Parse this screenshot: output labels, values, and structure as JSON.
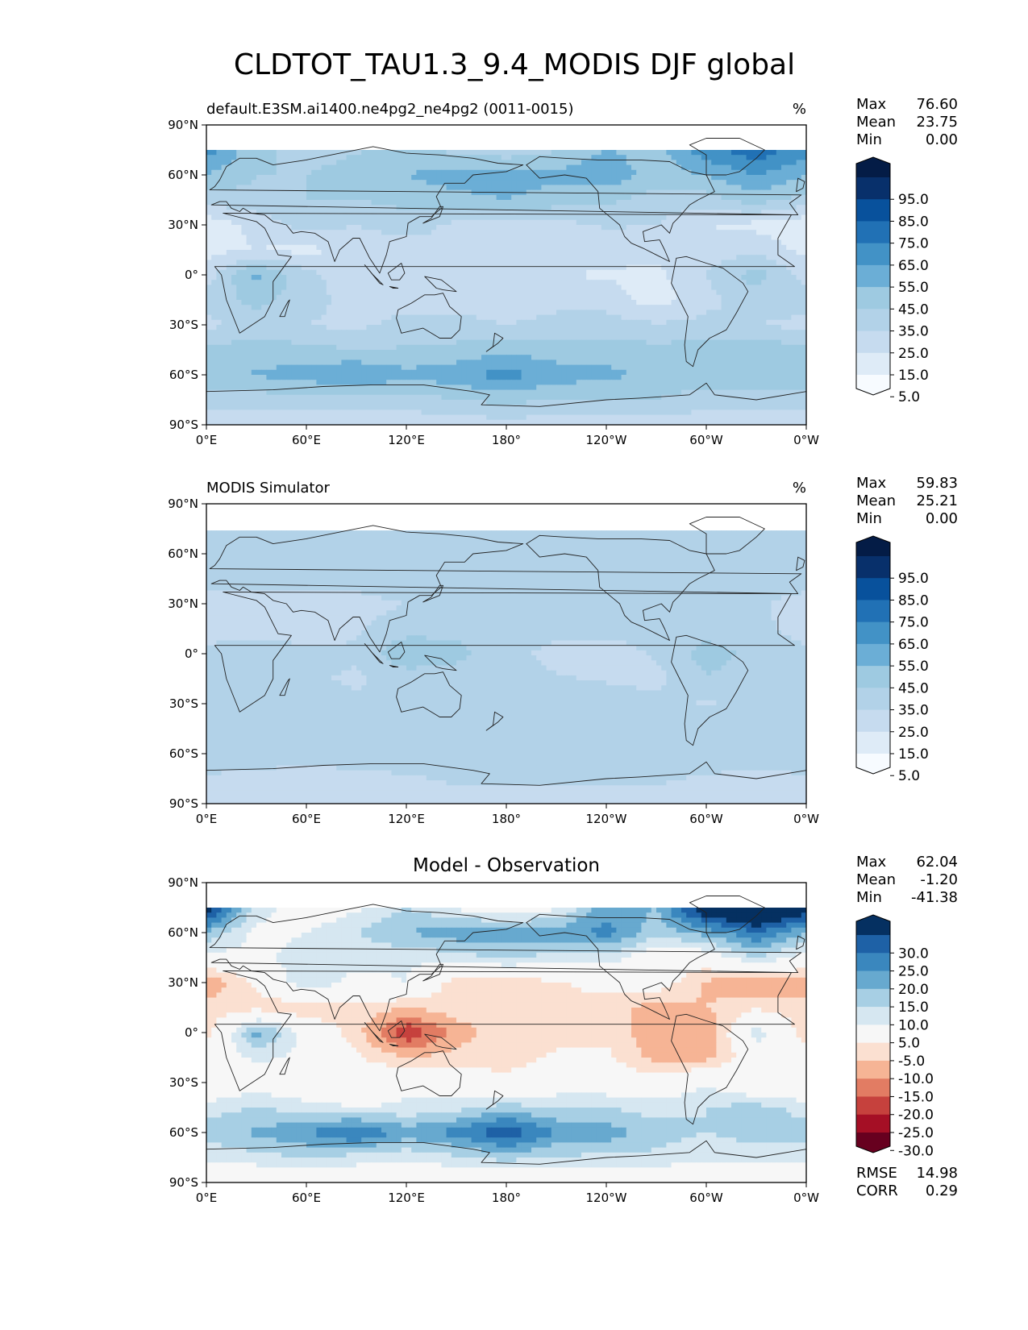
{
  "figure": {
    "title": "CLDTOT_TAU1.3_9.4_MODIS DJF global"
  },
  "palettes": {
    "sequential": [
      "#f7fbff",
      "#deebf7",
      "#c6dbef",
      "#b2d2e8",
      "#9ecae1",
      "#6baed6",
      "#4292c6",
      "#2171b5",
      "#08519c",
      "#08306b",
      "#041c46"
    ],
    "diverging": [
      "#67001f",
      "#a50f25",
      "#c6413d",
      "#e27c63",
      "#f6b495",
      "#fbe0d1",
      "#f7f7f7",
      "#d6e7f1",
      "#a7cfe4",
      "#67a9cf",
      "#3a87be",
      "#1e61a6",
      "#053061"
    ]
  },
  "chart_data": [
    {
      "type": "heatmap",
      "name": "test",
      "title_left": "default.E3SM.ai1400.ne4pg2_ne4pg2 (0011-0015)",
      "title_center": "",
      "units": "%",
      "stats": [
        {
          "label": "Max",
          "value": "76.60"
        },
        {
          "label": "Mean",
          "value": "23.75"
        },
        {
          "label": "Min",
          "value": "0.00"
        }
      ],
      "colorbar": {
        "levels": [
          0,
          5,
          15,
          25,
          35,
          45,
          55,
          65,
          75,
          85,
          95,
          100
        ],
        "tick_labels": [
          "95.0",
          "85.0",
          "75.0",
          "65.0",
          "55.0",
          "45.0",
          "35.0",
          "25.0",
          "15.0",
          "5.0"
        ],
        "extend": "both",
        "palette": "sequential"
      },
      "lon_ticks": [
        "0°E",
        "60°E",
        "120°E",
        "180°",
        "120°W",
        "60°W",
        "0°W"
      ],
      "lat_ticks": [
        "90°N",
        "60°N",
        "30°N",
        "0°",
        "30°S",
        "60°S",
        "90°S"
      ],
      "data_lat_range": [
        -90,
        75
      ],
      "grid": {
        "lats": [
          75,
          60,
          45,
          30,
          15,
          0,
          -15,
          -30,
          -45,
          -60,
          -75,
          -90
        ],
        "lons": [
          0,
          30,
          60,
          90,
          120,
          150,
          180,
          210,
          240,
          270,
          300,
          330,
          360
        ],
        "values": [
          [
            60,
            38,
            30,
            34,
            38,
            32,
            28,
            34,
            46,
            40,
            62,
            72,
            60
          ],
          [
            45,
            35,
            35,
            40,
            45,
            50,
            50,
            48,
            52,
            40,
            45,
            55,
            45
          ],
          [
            30,
            32,
            35,
            35,
            38,
            42,
            45,
            40,
            38,
            30,
            30,
            40,
            30
          ],
          [
            8,
            18,
            30,
            25,
            30,
            22,
            20,
            22,
            26,
            25,
            15,
            12,
            8
          ],
          [
            12,
            15,
            12,
            18,
            20,
            25,
            20,
            22,
            20,
            18,
            20,
            22,
            12
          ],
          [
            20,
            48,
            28,
            18,
            20,
            25,
            22,
            15,
            14,
            12,
            25,
            40,
            20
          ],
          [
            30,
            38,
            30,
            20,
            18,
            22,
            20,
            22,
            20,
            10,
            22,
            30,
            30
          ],
          [
            22,
            30,
            25,
            22,
            30,
            28,
            25,
            28,
            30,
            26,
            28,
            25,
            22
          ],
          [
            38,
            40,
            38,
            35,
            36,
            38,
            42,
            40,
            40,
            38,
            40,
            42,
            38
          ],
          [
            42,
            46,
            50,
            56,
            48,
            52,
            60,
            50,
            48,
            42,
            40,
            42,
            42
          ],
          [
            30,
            30,
            30,
            30,
            30,
            35,
            38,
            35,
            35,
            35,
            30,
            30,
            30
          ],
          [
            18,
            18,
            18,
            18,
            18,
            20,
            20,
            20,
            20,
            20,
            18,
            18,
            18
          ]
        ]
      },
      "extra_stats": []
    },
    {
      "type": "heatmap",
      "name": "reference",
      "title_left": "MODIS Simulator",
      "title_center": "",
      "units": "%",
      "stats": [
        {
          "label": "Max",
          "value": "59.83"
        },
        {
          "label": "Mean",
          "value": "25.21"
        },
        {
          "label": "Min",
          "value": "0.00"
        }
      ],
      "colorbar": {
        "levels": [
          0,
          5,
          15,
          25,
          35,
          45,
          55,
          65,
          75,
          85,
          95,
          100
        ],
        "tick_labels": [
          "95.0",
          "85.0",
          "75.0",
          "65.0",
          "55.0",
          "45.0",
          "35.0",
          "25.0",
          "15.0",
          "5.0"
        ],
        "extend": "both",
        "palette": "sequential"
      },
      "lon_ticks": [
        "0°E",
        "60°E",
        "120°E",
        "180°",
        "120°W",
        "60°W",
        "0°W"
      ],
      "lat_ticks": [
        "90°N",
        "60°N",
        "30°N",
        "0°",
        "30°S",
        "60°S",
        "90°S"
      ],
      "data_lat_range": [
        -90,
        74
      ],
      "grid": {
        "lats": [
          75,
          60,
          45,
          30,
          15,
          0,
          -15,
          -30,
          -45,
          -60,
          -75,
          -90
        ],
        "lons": [
          0,
          30,
          60,
          90,
          120,
          150,
          180,
          210,
          240,
          270,
          300,
          330,
          360
        ],
        "values": [
          [
            25,
            30,
            30,
            30,
            28,
            28,
            28,
            30,
            28,
            25,
            25,
            28,
            25
          ],
          [
            30,
            32,
            30,
            30,
            30,
            32,
            32,
            30,
            30,
            28,
            28,
            30,
            30
          ],
          [
            28,
            28,
            28,
            28,
            32,
            34,
            34,
            32,
            30,
            30,
            30,
            30,
            28
          ],
          [
            22,
            22,
            20,
            22,
            25,
            30,
            28,
            28,
            28,
            26,
            26,
            26,
            22
          ],
          [
            20,
            22,
            22,
            24,
            30,
            32,
            30,
            28,
            28,
            30,
            30,
            28,
            20
          ],
          [
            28,
            30,
            26,
            26,
            45,
            38,
            28,
            22,
            20,
            26,
            40,
            32,
            28
          ],
          [
            30,
            32,
            26,
            24,
            28,
            30,
            28,
            26,
            24,
            22,
            34,
            30,
            30
          ],
          [
            26,
            28,
            28,
            26,
            26,
            28,
            28,
            28,
            30,
            28,
            24,
            28,
            26
          ],
          [
            30,
            30,
            30,
            30,
            30,
            30,
            30,
            30,
            30,
            30,
            30,
            30,
            30
          ],
          [
            30,
            30,
            30,
            30,
            30,
            30,
            30,
            30,
            30,
            30,
            30,
            30,
            30
          ],
          [
            24,
            22,
            20,
            22,
            24,
            26,
            26,
            26,
            26,
            26,
            24,
            22,
            24
          ],
          [
            22,
            20,
            18,
            20,
            20,
            22,
            22,
            22,
            22,
            22,
            22,
            20,
            22
          ]
        ]
      },
      "extra_stats": []
    },
    {
      "type": "heatmap",
      "name": "difference",
      "title_left": "",
      "title_center": "Model - Observation",
      "units": "",
      "stats": [
        {
          "label": "Max",
          "value": "62.04"
        },
        {
          "label": "Mean",
          "value": "-1.20"
        },
        {
          "label": "Min",
          "value": "-41.38"
        }
      ],
      "colorbar": {
        "levels": [
          -100,
          -30,
          -25,
          -20,
          -15,
          -10,
          -5,
          5,
          10,
          15,
          20,
          25,
          30,
          100
        ],
        "tick_labels": [
          "30.0",
          "25.0",
          "20.0",
          "15.0",
          "10.0",
          "5.0",
          "-5.0",
          "-10.0",
          "-15.0",
          "-20.0",
          "-25.0",
          "-30.0"
        ],
        "extend": "both",
        "palette": "diverging"
      },
      "lon_ticks": [
        "0°E",
        "60°E",
        "120°E",
        "180°",
        "120°W",
        "60°W",
        "0°W"
      ],
      "lat_ticks": [
        "90°N",
        "60°N",
        "30°N",
        "0°",
        "30°S",
        "60°S",
        "90°S"
      ],
      "data_lat_range": [
        -90,
        75
      ],
      "grid": {
        "lats": [
          75,
          60,
          45,
          30,
          15,
          0,
          -15,
          -30,
          -45,
          -60,
          -75,
          -90
        ],
        "lons": [
          0,
          30,
          60,
          90,
          120,
          150,
          180,
          210,
          240,
          270,
          300,
          330,
          360
        ],
        "values": [
          [
            35,
            8,
            0,
            4,
            10,
            4,
            0,
            4,
            18,
            15,
            37,
            44,
            35
          ],
          [
            15,
            3,
            5,
            10,
            15,
            18,
            18,
            18,
            22,
            12,
            17,
            25,
            15
          ],
          [
            2,
            4,
            7,
            7,
            6,
            8,
            11,
            8,
            8,
            0,
            0,
            10,
            2
          ],
          [
            -14,
            -4,
            10,
            3,
            5,
            -8,
            -8,
            -6,
            -2,
            -1,
            -11,
            -14,
            -14
          ],
          [
            -8,
            -7,
            -10,
            -6,
            -10,
            -7,
            -10,
            -6,
            -8,
            -12,
            -10,
            -6,
            -8
          ],
          [
            -8,
            18,
            2,
            -8,
            -25,
            -13,
            -6,
            -7,
            -6,
            -14,
            -15,
            8,
            -8
          ],
          [
            0,
            6,
            4,
            -4,
            -10,
            -8,
            -8,
            -4,
            -4,
            -12,
            -12,
            0,
            0
          ],
          [
            -4,
            2,
            -3,
            -4,
            4,
            0,
            -3,
            0,
            0,
            -2,
            4,
            -3,
            -4
          ],
          [
            8,
            10,
            8,
            5,
            6,
            8,
            12,
            10,
            10,
            8,
            10,
            12,
            8
          ],
          [
            12,
            16,
            20,
            26,
            18,
            22,
            30,
            20,
            18,
            12,
            10,
            12,
            12
          ],
          [
            6,
            8,
            10,
            8,
            6,
            9,
            12,
            9,
            9,
            9,
            6,
            8,
            6
          ],
          [
            -4,
            -2,
            0,
            -2,
            -2,
            -2,
            -2,
            -2,
            -2,
            -2,
            -4,
            -2,
            -4
          ]
        ]
      },
      "extra_stats": [
        {
          "label": "RMSE",
          "value": "14.98"
        },
        {
          "label": "CORR",
          "value": "0.29"
        }
      ]
    }
  ]
}
